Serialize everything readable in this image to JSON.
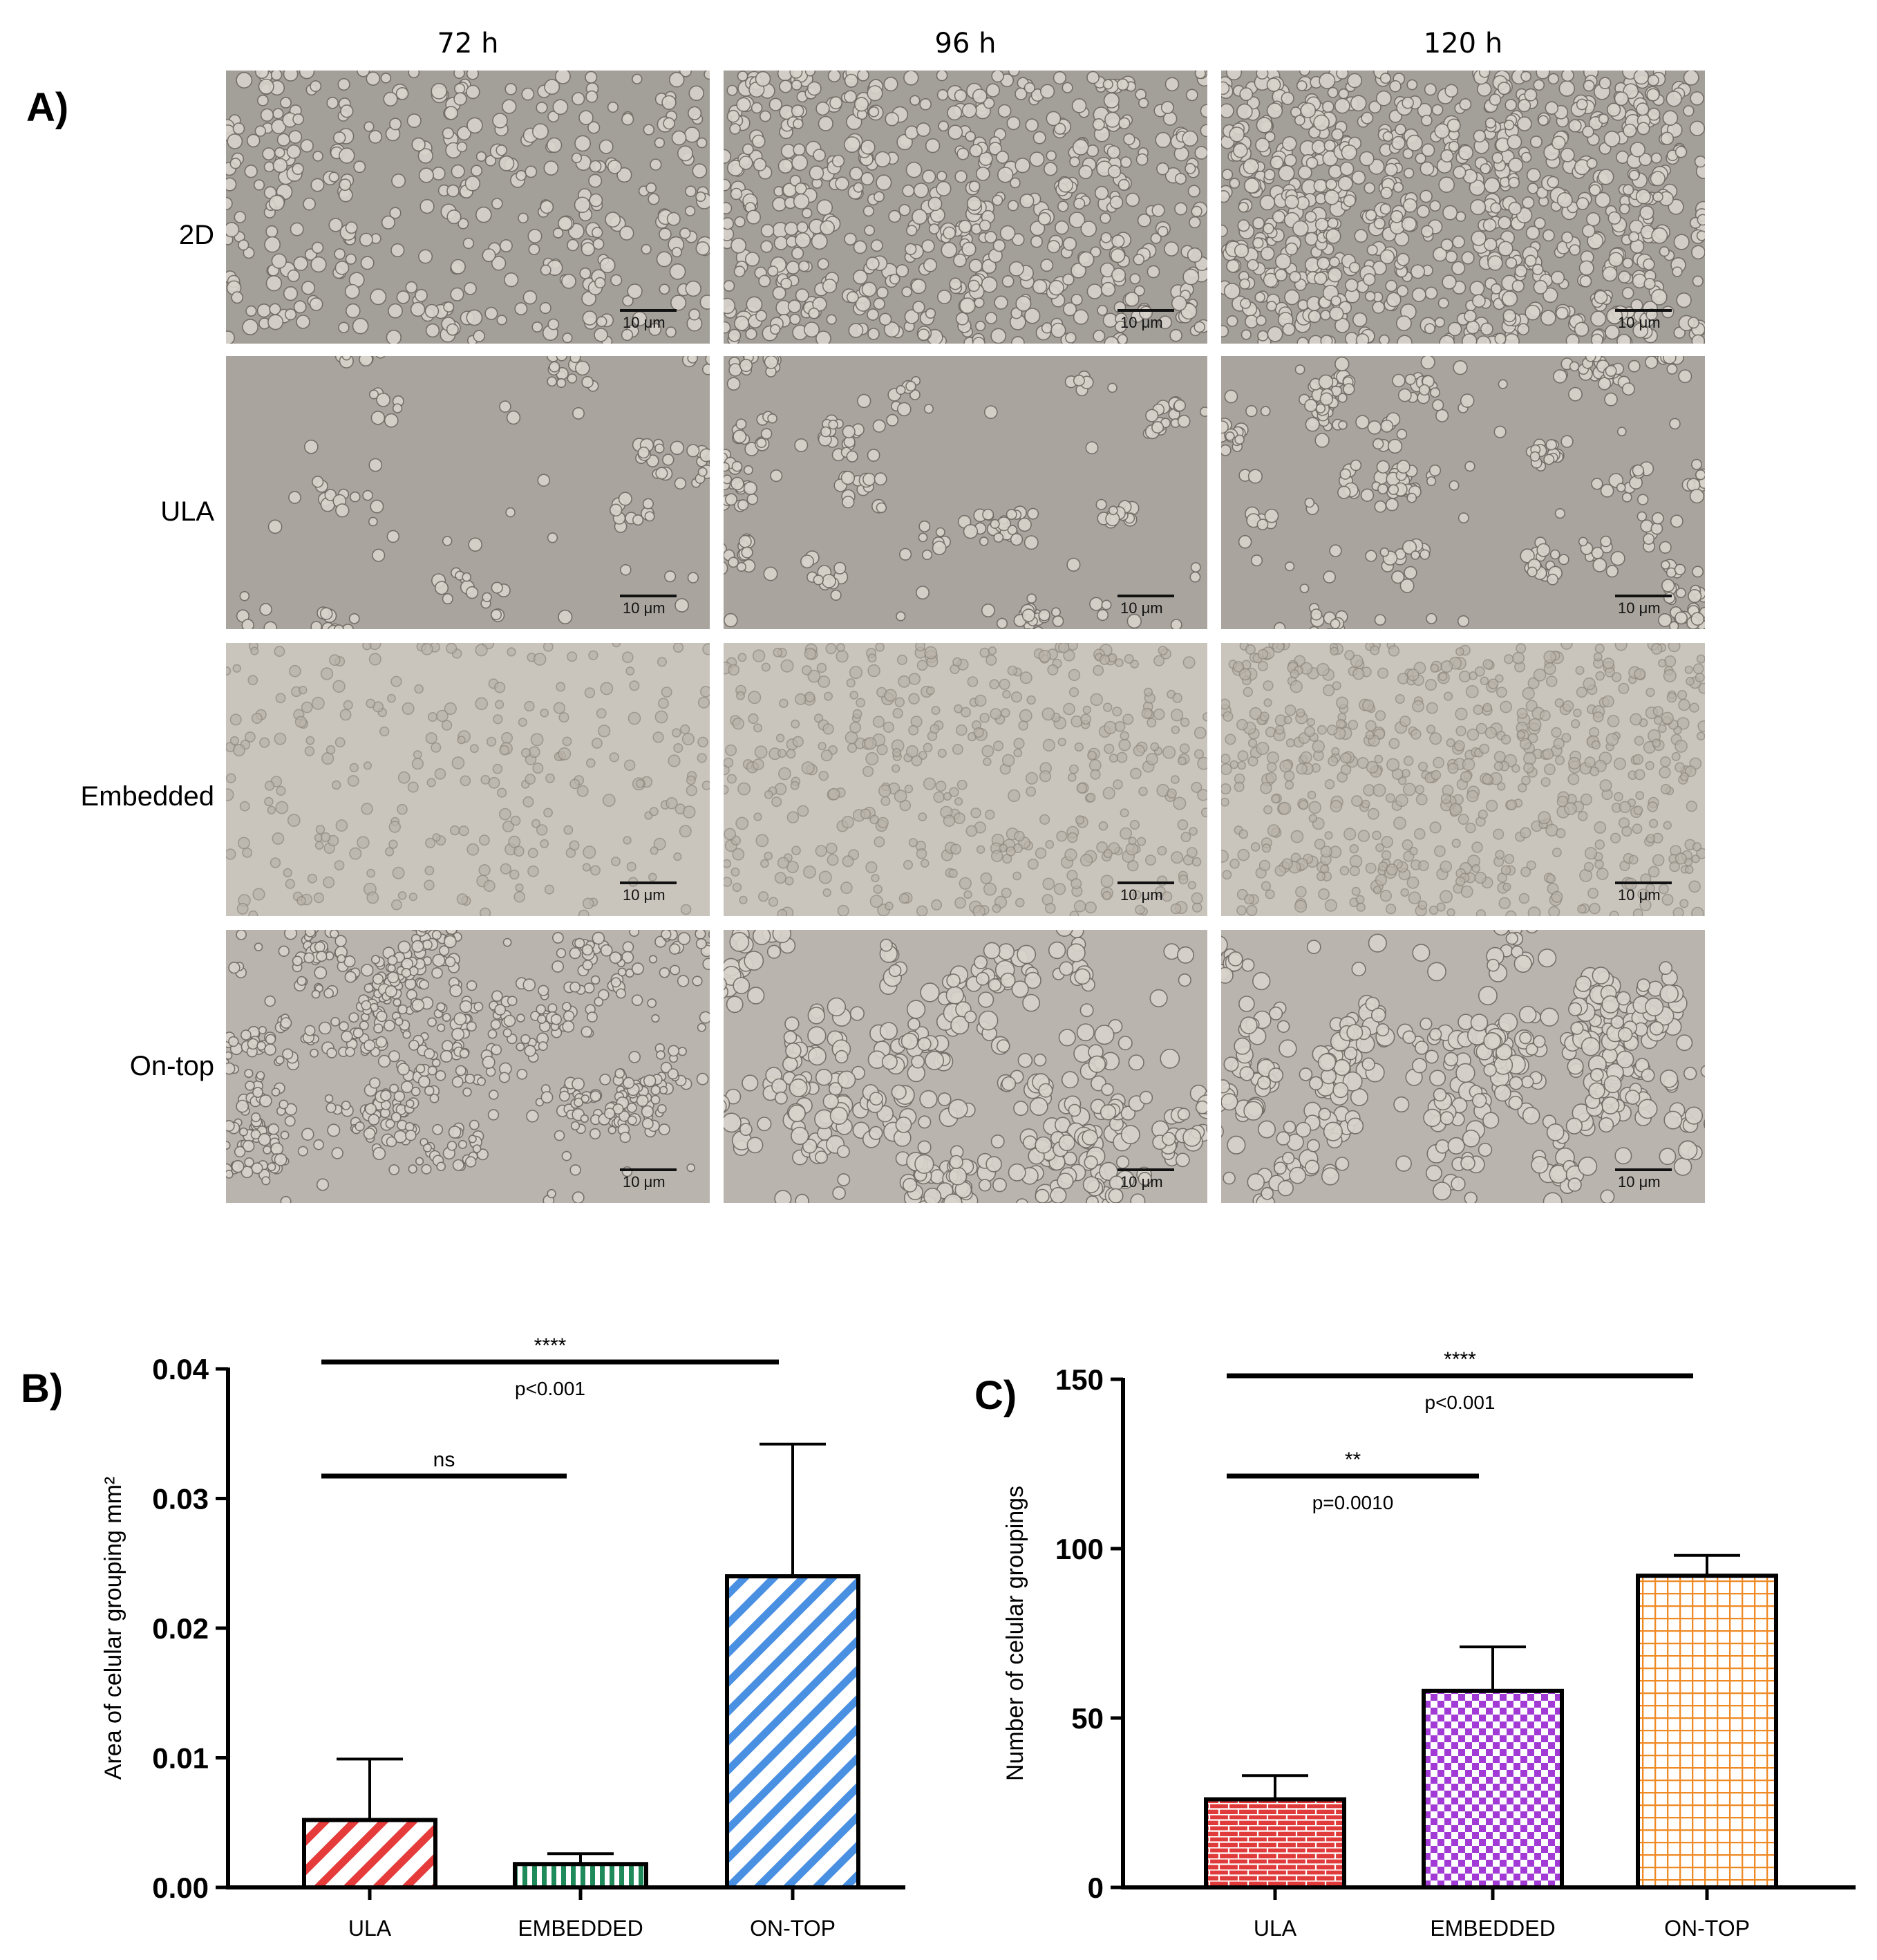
{
  "panels": {
    "a": "A)",
    "b": "B)",
    "c": "C)"
  },
  "timepoints": [
    "72 h",
    "96 h",
    "120 h"
  ],
  "conditions": [
    "2D",
    "ULA",
    "Embedded",
    "On-top"
  ],
  "scale_bar_label": "10 μm",
  "chart_data": [
    {
      "type": "bar",
      "panel": "B)",
      "categories": [
        "ULA",
        "EMBEDDED",
        "ON-TOP"
      ],
      "values": [
        0.0052,
        0.0018,
        0.024
      ],
      "error_upper": [
        0.0099,
        0.0026,
        0.0342
      ],
      "ylabel": "Area of celular grouping mm²",
      "xlabel": "",
      "ylim": [
        0,
        0.04
      ],
      "yticks": [
        "0.00",
        "0.01",
        "0.02",
        "0.03",
        "0.04"
      ],
      "bar_colors": [
        "#e63b3b",
        "#1f8a5a",
        "#4a90e2"
      ],
      "bar_patterns": [
        "diagonal-stripes",
        "vertical-stripes",
        "diagonal-stripes"
      ],
      "significance": [
        {
          "from": "ULA",
          "to": "EMBEDDED",
          "stars": "ns",
          "p": ""
        },
        {
          "from": "ULA",
          "to": "ON-TOP",
          "stars": "****",
          "p": "p<0.001"
        }
      ]
    },
    {
      "type": "bar",
      "panel": "C)",
      "categories": [
        "ULA",
        "EMBEDDED",
        "ON-TOP"
      ],
      "values": [
        26,
        58,
        92
      ],
      "error_upper": [
        33,
        71,
        98
      ],
      "ylabel": "Number of celular groupings",
      "xlabel": "",
      "ylim": [
        0,
        150
      ],
      "yticks": [
        "0",
        "50",
        "100",
        "150"
      ],
      "bar_colors": [
        "#e03a3a",
        "#a23ad6",
        "#f08a24"
      ],
      "bar_patterns": [
        "brick",
        "checker",
        "grid"
      ],
      "significance": [
        {
          "from": "ULA",
          "to": "EMBEDDED",
          "stars": "**",
          "p": "p=0.0010"
        },
        {
          "from": "ULA",
          "to": "ON-TOP",
          "stars": "****",
          "p": "p<0.001"
        }
      ]
    }
  ]
}
